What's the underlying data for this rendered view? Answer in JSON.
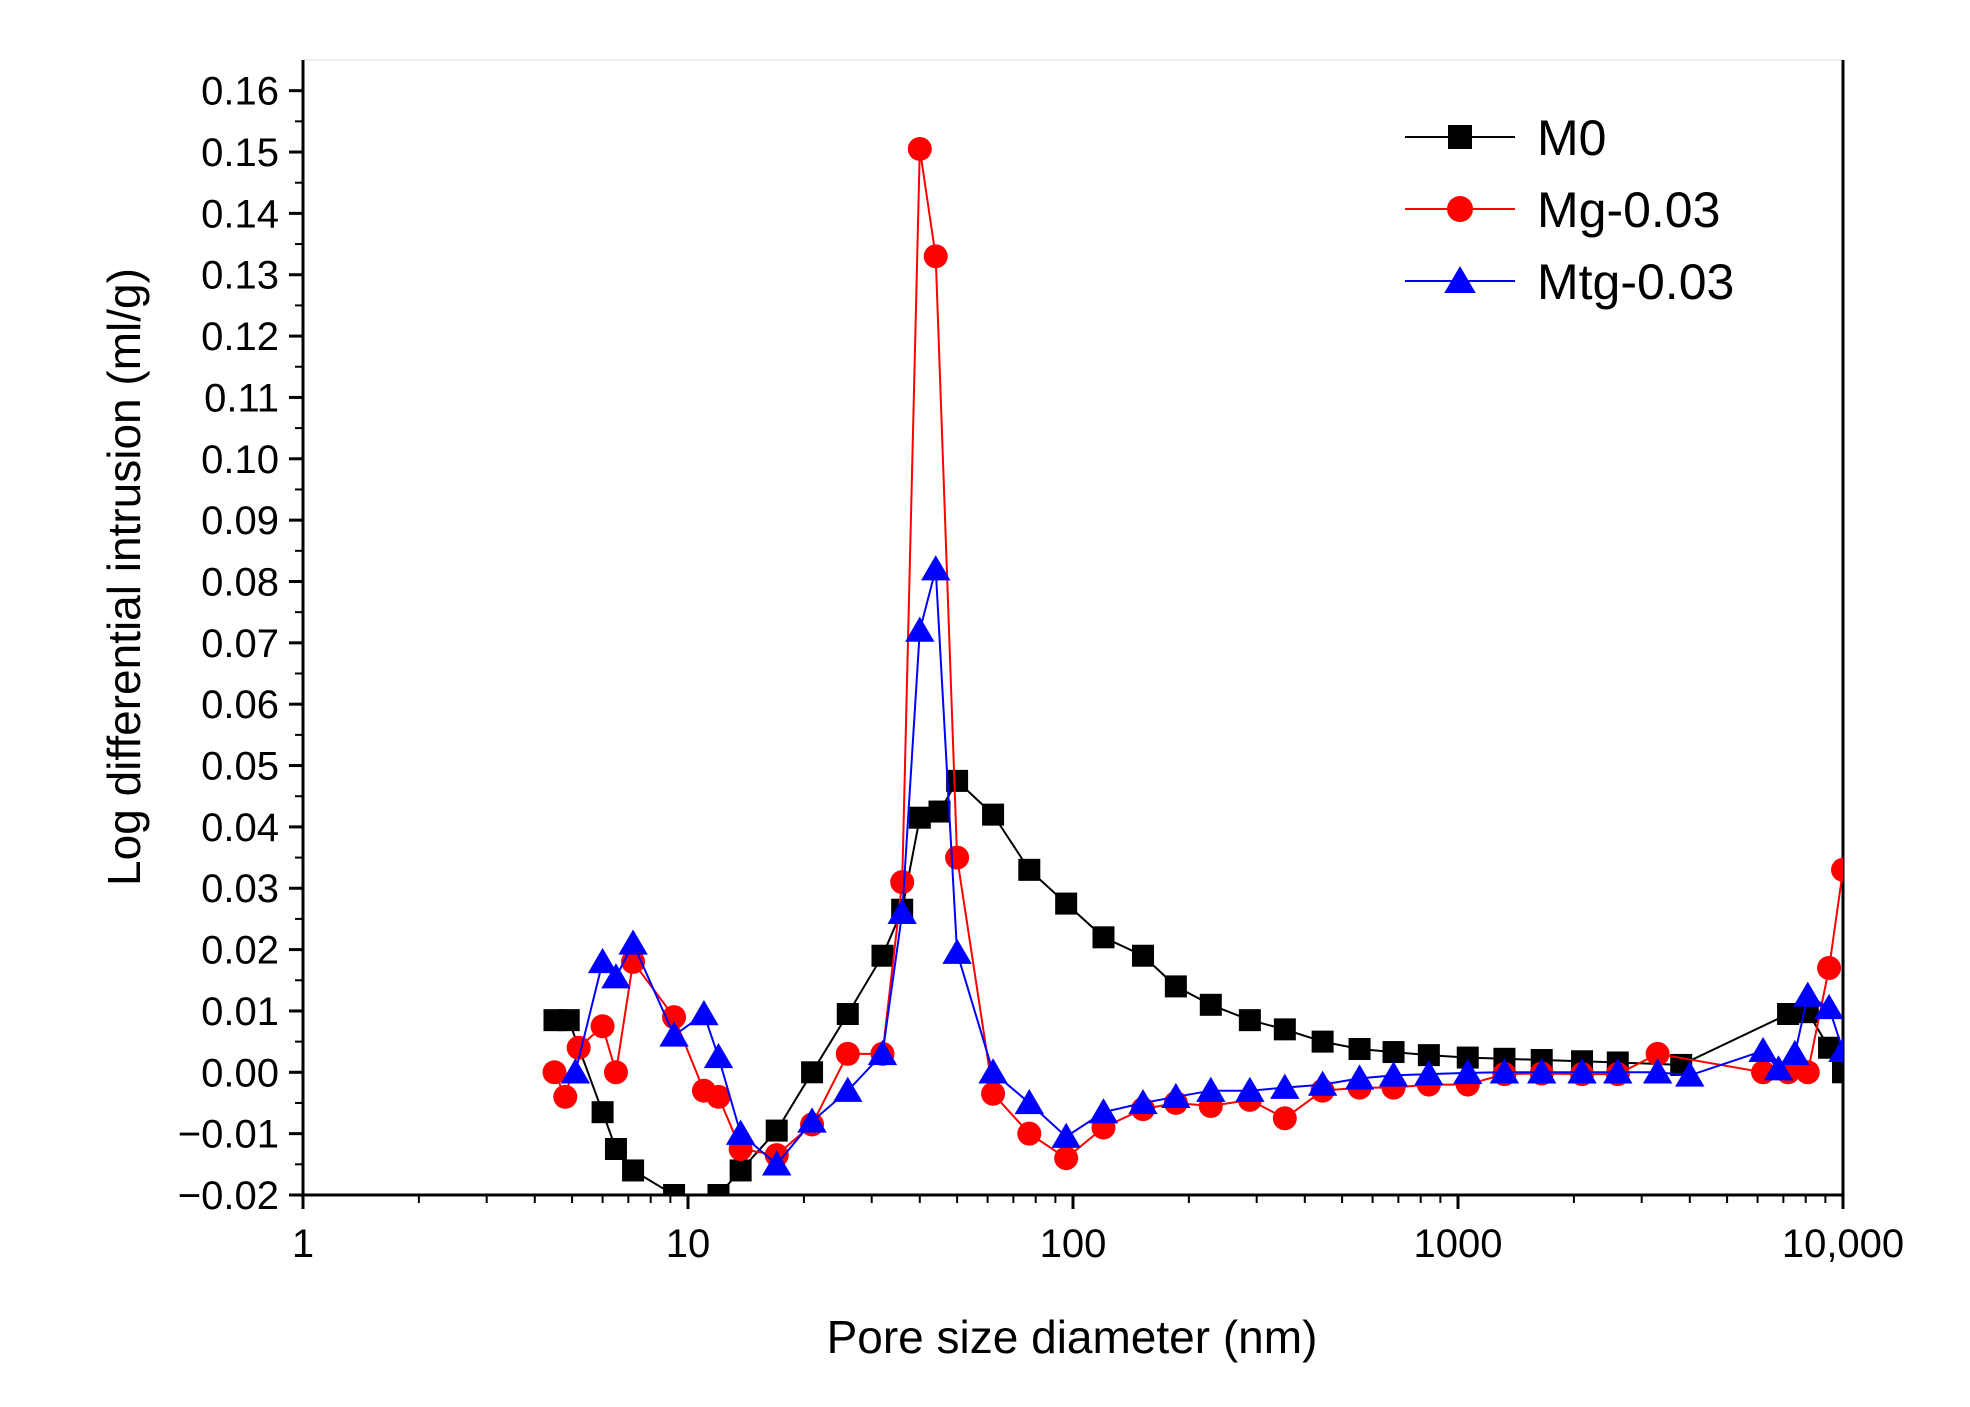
{
  "chart_data": {
    "type": "scatter",
    "title": "",
    "xlabel": "Pore size diameter (nm)",
    "ylabel": "Log differential intrusion (ml/g)",
    "xscale": "log",
    "xlim": [
      1,
      10000
    ],
    "ylim": [
      -0.02,
      0.165
    ],
    "xticks": [
      {
        "value": 1,
        "label": "1"
      },
      {
        "value": 10,
        "label": "10"
      },
      {
        "value": 100,
        "label": "100"
      },
      {
        "value": 1000,
        "label": "1000"
      },
      {
        "value": 10000,
        "label": "10,000"
      }
    ],
    "yticks": [
      {
        "value": 0.16,
        "label": "0.16"
      },
      {
        "value": 0.15,
        "label": "0.15"
      },
      {
        "value": 0.14,
        "label": "0.14"
      },
      {
        "value": 0.13,
        "label": "0.13"
      },
      {
        "value": 0.12,
        "label": "0.12"
      },
      {
        "value": 0.11,
        "label": "0.11"
      },
      {
        "value": 0.1,
        "label": "0.10"
      },
      {
        "value": 0.09,
        "label": "0.09"
      },
      {
        "value": 0.08,
        "label": "0.08"
      },
      {
        "value": 0.07,
        "label": "0.07"
      },
      {
        "value": 0.06,
        "label": "0.06"
      },
      {
        "value": 0.05,
        "label": "0.05"
      },
      {
        "value": 0.04,
        "label": "0.04"
      },
      {
        "value": 0.03,
        "label": "0.03"
      },
      {
        "value": 0.02,
        "label": "0.02"
      },
      {
        "value": 0.01,
        "label": "0.01"
      },
      {
        "value": 0.0,
        "label": "0.00"
      },
      {
        "value": -0.01,
        "label": "−0.01"
      },
      {
        "value": -0.02,
        "label": "−0.02"
      }
    ],
    "legend_position": "top-right",
    "grid": false,
    "series": [
      {
        "name": "M0",
        "color": "#000000",
        "marker": "square",
        "x": [
          4.5,
          4.9,
          6.0,
          6.5,
          7.2,
          9.2,
          12.0,
          13.7,
          17.0,
          21.0,
          26.0,
          32.0,
          36.0,
          40.0,
          45.0,
          50.0,
          62.0,
          77.0,
          96.0,
          120.0,
          152.0,
          185.0,
          228.0,
          288.0,
          355.0,
          445.0,
          555.0,
          680.0,
          840.0,
          1060.0,
          1320.0,
          1650.0,
          2100.0,
          2600.0,
          3800.0,
          7200.0,
          8100.0,
          9200.0,
          10000.0
        ],
        "y": [
          0.0085,
          0.0085,
          -0.0065,
          -0.0125,
          -0.016,
          -0.02,
          -0.02,
          -0.016,
          -0.0095,
          0.0,
          0.0095,
          0.019,
          0.0265,
          0.0415,
          0.0425,
          0.0475,
          0.042,
          0.033,
          0.0275,
          0.022,
          0.019,
          0.014,
          0.011,
          0.0085,
          0.007,
          0.005,
          0.0038,
          0.0033,
          0.0028,
          0.0024,
          0.0022,
          0.002,
          0.0018,
          0.0016,
          0.0012,
          0.0095,
          0.0098,
          0.004,
          0.0
        ]
      },
      {
        "name": "Mg-0.03",
        "color": "#ff0000",
        "marker": "circle",
        "x": [
          4.5,
          4.8,
          5.2,
          6.0,
          6.5,
          7.2,
          9.2,
          11.0,
          12.0,
          13.7,
          17.0,
          21.0,
          26.0,
          32.0,
          36.0,
          40.0,
          44.0,
          50.0,
          62.0,
          77.0,
          96.0,
          120.0,
          152.0,
          185.0,
          228.0,
          288.0,
          355.0,
          445.0,
          555.0,
          680.0,
          840.0,
          1060.0,
          1320.0,
          1650.0,
          2100.0,
          2600.0,
          3300.0,
          6200.0,
          7200.0,
          8100.0,
          9200.0,
          10000.0
        ],
        "y": [
          0.0,
          -0.004,
          0.004,
          0.0075,
          0.0,
          0.018,
          0.009,
          -0.003,
          -0.004,
          -0.0125,
          -0.0135,
          -0.0085,
          0.003,
          0.003,
          0.031,
          0.1505,
          0.133,
          0.035,
          -0.0035,
          -0.01,
          -0.014,
          -0.009,
          -0.006,
          -0.005,
          -0.0055,
          -0.0045,
          -0.0075,
          -0.003,
          -0.0025,
          -0.0025,
          -0.002,
          -0.002,
          -0.0003,
          -0.0002,
          -0.0003,
          -0.0003,
          0.003,
          0.0,
          0.0,
          0.0,
          0.017,
          0.033
        ]
      },
      {
        "name": "Mtg-0.03",
        "color": "#0000ff",
        "marker": "triangle",
        "x": [
          5.1,
          6.0,
          6.5,
          7.2,
          9.2,
          11.0,
          12.0,
          13.7,
          17.0,
          21.0,
          26.0,
          32.0,
          36.0,
          40.0,
          44.0,
          50.0,
          62.0,
          77.0,
          96.0,
          120.0,
          152.0,
          185.0,
          228.0,
          288.0,
          355.0,
          445.0,
          555.0,
          680.0,
          840.0,
          1060.0,
          1320.0,
          1650.0,
          2100.0,
          2600.0,
          3300.0,
          4000.0,
          6200.0,
          6800.0,
          7500.0,
          8100.0,
          9200.0,
          10000.0
        ],
        "y": [
          0.0,
          0.018,
          0.0155,
          0.021,
          0.006,
          0.0095,
          0.0025,
          -0.01,
          -0.015,
          -0.008,
          -0.003,
          0.003,
          0.026,
          0.072,
          0.082,
          0.0195,
          0.0,
          -0.005,
          -0.0105,
          -0.0065,
          -0.005,
          -0.004,
          -0.003,
          -0.003,
          -0.0025,
          -0.002,
          -0.001,
          -0.0005,
          -0.0003,
          -0.0001,
          0.0,
          0.0,
          0.0,
          0.0,
          0.0,
          -0.0005,
          0.0035,
          0.0005,
          0.003,
          0.0125,
          0.0105,
          0.0035
        ]
      }
    ]
  }
}
